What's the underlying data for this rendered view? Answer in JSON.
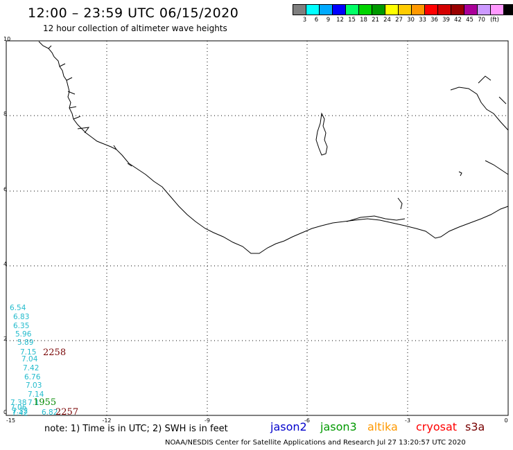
{
  "header": {
    "title": "12:00 – 23:59 UTC 06/15/2020",
    "subtitle": "12 hour collection of altimeter wave heights"
  },
  "legend": {
    "colors": [
      "#7f7f7f",
      "#00ffff",
      "#00aaff",
      "#0000ff",
      "#00ff66",
      "#00d400",
      "#009900",
      "#ffff00",
      "#ffcc00",
      "#ff9900",
      "#ff0000",
      "#d40000",
      "#990000",
      "#aa0099",
      "#cc99ff",
      "#ff99ff",
      "#000000"
    ],
    "ticks": [
      "3",
      "6",
      "9",
      "12",
      "15",
      "18",
      "21",
      "24",
      "27",
      "30",
      "33",
      "36",
      "39",
      "42",
      "45",
      "70"
    ],
    "unit": "(ft)"
  },
  "axes": {
    "x_ticks": [
      "-15",
      "-12",
      "-9",
      "-6",
      "-3",
      "0"
    ],
    "y_ticks": [
      "0",
      "2",
      "4",
      "6",
      "8",
      "10"
    ]
  },
  "observations": [
    {
      "text": "6.54",
      "color": "#22bbcc"
    },
    {
      "text": "6.83",
      "color": "#22bbcc"
    },
    {
      "text": "6.35",
      "color": "#22bbcc"
    },
    {
      "text": "5.96",
      "color": "#22bbcc"
    },
    {
      "text": "5.89",
      "color": "#22bbcc"
    },
    {
      "text": "7.15",
      "color": "#22bbcc"
    },
    {
      "text": "7.04",
      "color": "#22bbcc"
    },
    {
      "text": "7.42",
      "color": "#22bbcc"
    },
    {
      "text": "6.76",
      "color": "#22bbcc"
    },
    {
      "text": "7.03",
      "color": "#22bbcc"
    },
    {
      "text": "7.14",
      "color": "#22bbcc"
    },
    {
      "text": "7.38",
      "color": "#22bbcc"
    },
    {
      "text": "7.1",
      "color": "#22bbcc"
    },
    {
      "text": "7.06",
      "color": "#22bbcc"
    },
    {
      "text": "7.32",
      "color": "#22bbcc"
    },
    {
      "text": "7.42",
      "color": "#22bbcc"
    },
    {
      "text": "6.82",
      "color": "#22bbcc"
    }
  ],
  "pass_times": [
    {
      "text": "2258",
      "color": "#770000"
    },
    {
      "text": "1955",
      "color": "#008800"
    },
    {
      "text": "2257",
      "color": "#770000"
    }
  ],
  "footer": {
    "note": "note: 1) Time is in UTC; 2) SWH is in feet",
    "satellites": [
      {
        "name": "jason2",
        "color": "#0000cc"
      },
      {
        "name": "jason3",
        "color": "#009900"
      },
      {
        "name": "altika",
        "color": "#ff9900"
      },
      {
        "name": "cryosat",
        "color": "#ff0000"
      },
      {
        "name": "s3a",
        "color": "#770000"
      }
    ],
    "credit": "NOAA/NESDIS Center for Satellite Applications and Research    Jul 27 13:20:57 UTC 2020"
  }
}
